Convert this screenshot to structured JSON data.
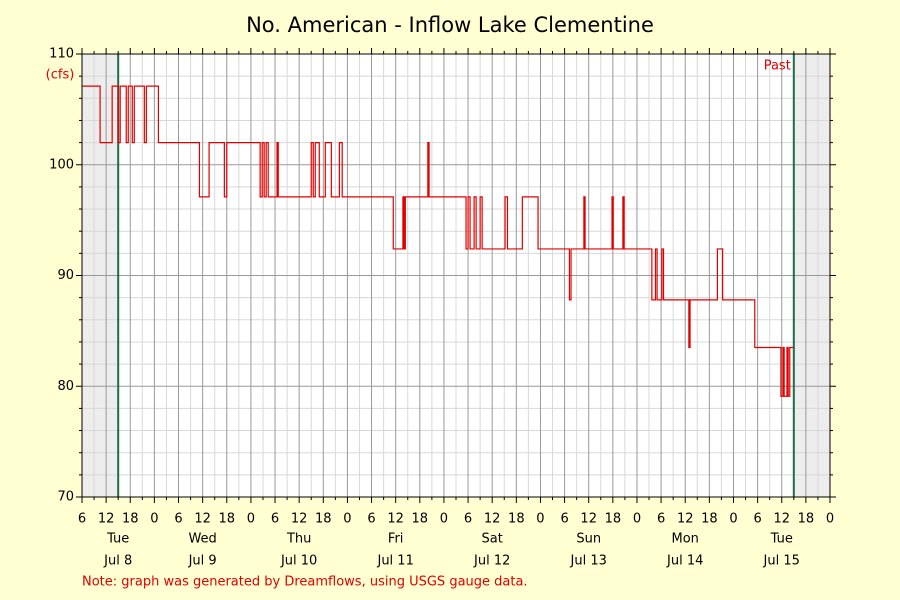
{
  "chart_data": {
    "type": "line",
    "title": "No. American - Inflow Lake Clementine",
    "y_label": "(cfs)",
    "note": "Note: graph was generated by Dreamflows, using USGS gauge data.",
    "past_label": "Past",
    "vlines": [
      -9,
      159
    ],
    "xlim": [
      -18,
      168
    ],
    "ylim": [
      70,
      110
    ],
    "yticks": [
      70,
      80,
      90,
      100,
      110
    ],
    "xticks": [
      {
        "value": -18,
        "label": "6"
      },
      {
        "value": -12,
        "label": "12"
      },
      {
        "value": -6,
        "label": "18"
      },
      0,
      6,
      12,
      18,
      {
        "value": 24,
        "label": "0"
      },
      {
        "value": 30,
        "label": "6"
      },
      {
        "value": 36,
        "label": "12"
      },
      {
        "value": 42,
        "label": "18"
      },
      {
        "value": 48,
        "label": "0"
      },
      {
        "value": 54,
        "label": "6"
      },
      {
        "value": 60,
        "label": "12"
      },
      {
        "value": 66,
        "label": "18"
      },
      {
        "value": 72,
        "label": "0"
      },
      {
        "value": 78,
        "label": "6"
      },
      {
        "value": 84,
        "label": "12"
      },
      {
        "value": 90,
        "label": "18"
      },
      {
        "value": 96,
        "label": "0"
      },
      {
        "value": 102,
        "label": "6"
      },
      {
        "value": 108,
        "label": "12"
      },
      {
        "value": 114,
        "label": "18"
      },
      {
        "value": 120,
        "label": "0"
      },
      {
        "value": 126,
        "label": "6"
      },
      {
        "value": 132,
        "label": "12"
      },
      {
        "value": 138,
        "label": "18"
      },
      {
        "value": 144,
        "label": "0"
      },
      {
        "value": 150,
        "label": "6"
      },
      {
        "value": 156,
        "label": "12"
      },
      {
        "value": 162,
        "label": "18"
      },
      {
        "value": 168,
        "label": "0"
      }
    ],
    "day_labels": [
      {
        "value": -9,
        "label": "Tue",
        "date": "Jul 8"
      },
      {
        "value": 12,
        "label": "Wed",
        "date": "Jul 9"
      },
      {
        "value": 36,
        "label": "Thu",
        "date": "Jul 10"
      },
      {
        "value": 60,
        "label": "Fri",
        "date": "Jul 11"
      },
      {
        "value": 84,
        "label": "Sat",
        "date": "Jul 12"
      },
      {
        "value": 108,
        "label": "Sun",
        "date": "Jul 13"
      },
      {
        "value": 132,
        "label": "Mon",
        "date": "Jul 14"
      },
      {
        "value": 156,
        "label": "Tue",
        "date": "Jul 15"
      }
    ],
    "grid": true,
    "series": [
      {
        "name": "Inflow",
        "color": "#e00000",
        "x": [
          -18,
          -13.5,
          -13.5,
          -10.5,
          -10.5,
          -9,
          -9,
          -8.5,
          -8.5,
          -7,
          -7,
          -6.5,
          -6.5,
          -5.5,
          -5.5,
          -5,
          -5,
          -2.5,
          -2.5,
          -2,
          -2,
          1,
          1,
          11.2,
          11.2,
          13.6,
          13.6,
          17.4,
          17.4,
          18,
          18,
          26.3,
          26.3,
          26.8,
          26.8,
          27.3,
          27.3,
          27.8,
          27.8,
          28.3,
          28.3,
          30.5,
          30.5,
          30.8,
          30.8,
          39,
          39,
          39.5,
          39.5,
          40,
          40,
          41,
          41,
          42.5,
          42.5,
          44,
          44,
          46,
          46,
          46.7,
          46.7,
          59.4,
          59.4,
          61.8,
          61.8,
          62.1,
          62.1,
          62.4,
          62.4,
          68,
          68,
          68.3,
          68.3,
          77.5,
          77.5,
          78,
          78,
          78.5,
          78.5,
          79.5,
          79.5,
          80,
          80,
          81,
          81,
          81.5,
          81.5,
          87.2,
          87.2,
          87.8,
          87.8,
          91.5,
          91.5,
          95.4,
          95.4,
          103.2,
          103.2,
          103.6,
          103.6,
          106.8,
          106.8,
          107.1,
          107.1,
          113.8,
          113.8,
          114.1,
          114.1,
          116.5,
          116.5,
          116.8,
          116.8,
          123.7,
          123.7,
          124.6,
          124.6,
          125,
          125,
          126.2,
          126.2,
          126.6,
          126.6,
          132.9,
          132.9,
          133.2,
          133.2,
          140,
          140,
          141.3,
          141.3,
          149.3,
          149.3,
          155.8,
          155.8,
          156.3,
          156.3,
          156.6,
          156.6,
          157.3,
          157.3,
          157.6,
          157.6,
          158,
          158,
          158.8
        ],
        "values": [
          107.1,
          107.1,
          102,
          102,
          107.1,
          107.1,
          102,
          102,
          107.1,
          107.1,
          102,
          102,
          107.1,
          107.1,
          102,
          102,
          107.1,
          107.1,
          102,
          102,
          107.1,
          107.1,
          102,
          102,
          97.1,
          97.1,
          102,
          102,
          97.1,
          97.1,
          102,
          102,
          97.1,
          97.1,
          102,
          102,
          97.1,
          97.1,
          102,
          102,
          97.1,
          97.1,
          102,
          102,
          97.1,
          97.1,
          102,
          102,
          97.1,
          97.1,
          102,
          102,
          97.1,
          97.1,
          102,
          102,
          97.1,
          97.1,
          102,
          102,
          97.1,
          97.1,
          92.4,
          92.4,
          97.1,
          97.1,
          92.4,
          92.4,
          97.1,
          97.1,
          102,
          102,
          97.1,
          97.1,
          92.4,
          92.4,
          97.1,
          97.1,
          92.4,
          92.4,
          97.1,
          97.1,
          92.4,
          92.4,
          97.1,
          97.1,
          92.4,
          92.4,
          97.1,
          97.1,
          92.4,
          92.4,
          97.1,
          97.1,
          92.4,
          92.4,
          87.8,
          87.8,
          92.4,
          92.4,
          97.1,
          97.1,
          92.4,
          92.4,
          97.1,
          97.1,
          92.4,
          92.4,
          97.1,
          97.1,
          92.4,
          92.4,
          87.8,
          87.8,
          92.4,
          92.4,
          87.8,
          87.8,
          92.4,
          92.4,
          87.8,
          87.8,
          83.5,
          83.5,
          87.8,
          87.8,
          92.4,
          92.4,
          87.8,
          87.8,
          83.5,
          83.5,
          79.1,
          79.1,
          83.5,
          83.5,
          79.1,
          79.1,
          83.5,
          83.5,
          79.1,
          79.1,
          83.5,
          83.5
        ]
      }
    ]
  }
}
